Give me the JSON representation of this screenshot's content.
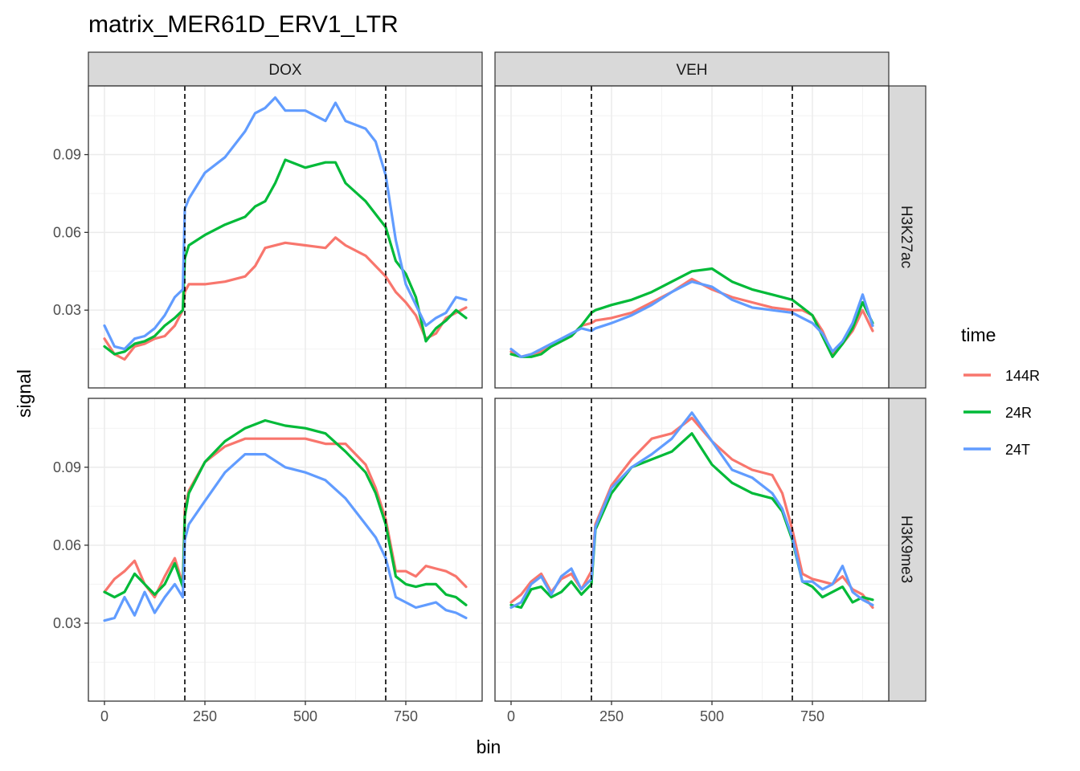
{
  "chart_data": {
    "type": "line",
    "title": "matrix_MER61D_ERV1_LTR",
    "xlabel": "bin",
    "ylabel": "signal",
    "xlim": [
      -40,
      940
    ],
    "ylim": [
      0.0,
      0.1165
    ],
    "x_ticks": [
      0,
      250,
      500,
      750
    ],
    "x_tick_labels": [
      "0",
      "250",
      "500",
      "750"
    ],
    "y_ticks": [
      0.03,
      0.06,
      0.09
    ],
    "y_tick_labels": [
      "0.03",
      "0.06",
      "0.09"
    ],
    "vlines": [
      200,
      700
    ],
    "grid": true,
    "legend_position": "right",
    "legend": {
      "title": "time",
      "entries": [
        {
          "name": "144R",
          "color": "#F8766D"
        },
        {
          "name": "24R",
          "color": "#00BA38"
        },
        {
          "name": "24T",
          "color": "#619CFF"
        }
      ]
    },
    "facet_cols": [
      "DOX",
      "VEH"
    ],
    "facet_rows": [
      "H3K27ac",
      "H3K9me3"
    ],
    "panels": [
      {
        "col": "DOX",
        "row": "H3K27ac",
        "series": [
          {
            "name": "144R",
            "color": "#F8766D",
            "x": [
              0,
              25,
              50,
              75,
              100,
              125,
              150,
              175,
              195,
              200,
              210,
              250,
              300,
              350,
              375,
              400,
              450,
              500,
              550,
              575,
              600,
              650,
              700,
              725,
              750,
              775,
              800,
              825,
              850,
              875,
              900
            ],
            "y": [
              0.019,
              0.013,
              0.011,
              0.016,
              0.017,
              0.019,
              0.02,
              0.024,
              0.03,
              0.037,
              0.04,
              0.04,
              0.041,
              0.043,
              0.047,
              0.054,
              0.056,
              0.055,
              0.054,
              0.058,
              0.055,
              0.051,
              0.043,
              0.037,
              0.033,
              0.028,
              0.019,
              0.021,
              0.027,
              0.029,
              0.031
            ]
          },
          {
            "name": "24R",
            "color": "#00BA38",
            "x": [
              0,
              25,
              50,
              75,
              100,
              125,
              150,
              175,
              195,
              200,
              210,
              250,
              300,
              350,
              375,
              400,
              425,
              450,
              500,
              550,
              575,
              600,
              650,
              700,
              725,
              750,
              775,
              800,
              825,
              850,
              875,
              900
            ],
            "y": [
              0.016,
              0.013,
              0.014,
              0.017,
              0.018,
              0.02,
              0.024,
              0.027,
              0.03,
              0.05,
              0.055,
              0.059,
              0.063,
              0.066,
              0.07,
              0.072,
              0.079,
              0.088,
              0.085,
              0.087,
              0.087,
              0.079,
              0.072,
              0.062,
              0.049,
              0.044,
              0.035,
              0.018,
              0.023,
              0.026,
              0.03,
              0.027
            ]
          },
          {
            "name": "24T",
            "color": "#619CFF",
            "x": [
              0,
              25,
              50,
              75,
              100,
              125,
              150,
              175,
              195,
              200,
              210,
              250,
              300,
              350,
              375,
              400,
              425,
              450,
              500,
              550,
              575,
              600,
              650,
              675,
              700,
              725,
              750,
              775,
              800,
              825,
              850,
              875,
              900
            ],
            "y": [
              0.024,
              0.016,
              0.015,
              0.019,
              0.02,
              0.023,
              0.028,
              0.035,
              0.038,
              0.069,
              0.073,
              0.083,
              0.089,
              0.099,
              0.106,
              0.108,
              0.112,
              0.107,
              0.107,
              0.103,
              0.11,
              0.103,
              0.1,
              0.095,
              0.082,
              0.057,
              0.04,
              0.032,
              0.024,
              0.027,
              0.029,
              0.035,
              0.034
            ]
          }
        ]
      },
      {
        "col": "VEH",
        "row": "H3K27ac",
        "series": [
          {
            "name": "144R",
            "color": "#F8766D",
            "x": [
              0,
              25,
              50,
              75,
              100,
              125,
              150,
              175,
              200,
              210,
              250,
              300,
              350,
              400,
              450,
              500,
              550,
              600,
              650,
              700,
              725,
              750,
              775,
              800,
              825,
              850,
              875,
              900
            ],
            "y": [
              0.014,
              0.012,
              0.013,
              0.014,
              0.016,
              0.018,
              0.02,
              0.024,
              0.025,
              0.026,
              0.027,
              0.029,
              0.033,
              0.037,
              0.042,
              0.038,
              0.035,
              0.033,
              0.031,
              0.03,
              0.03,
              0.028,
              0.022,
              0.013,
              0.017,
              0.022,
              0.03,
              0.022
            ]
          },
          {
            "name": "24R",
            "color": "#00BA38",
            "x": [
              0,
              25,
              50,
              75,
              100,
              125,
              150,
              175,
              200,
              210,
              250,
              300,
              350,
              400,
              450,
              500,
              550,
              600,
              650,
              700,
              725,
              750,
              775,
              800,
              825,
              850,
              875,
              900
            ],
            "y": [
              0.013,
              0.012,
              0.012,
              0.013,
              0.016,
              0.018,
              0.02,
              0.024,
              0.029,
              0.03,
              0.032,
              0.034,
              0.037,
              0.041,
              0.045,
              0.046,
              0.041,
              0.038,
              0.036,
              0.034,
              0.031,
              0.028,
              0.02,
              0.012,
              0.017,
              0.023,
              0.033,
              0.025
            ]
          },
          {
            "name": "24T",
            "color": "#619CFF",
            "x": [
              0,
              25,
              50,
              75,
              100,
              125,
              150,
              175,
              200,
              210,
              250,
              300,
              350,
              400,
              450,
              500,
              550,
              600,
              650,
              700,
              725,
              750,
              775,
              800,
              825,
              850,
              875,
              900
            ],
            "y": [
              0.015,
              0.012,
              0.013,
              0.015,
              0.017,
              0.019,
              0.021,
              0.023,
              0.022,
              0.023,
              0.025,
              0.028,
              0.032,
              0.037,
              0.041,
              0.039,
              0.034,
              0.031,
              0.03,
              0.029,
              0.027,
              0.025,
              0.021,
              0.014,
              0.018,
              0.025,
              0.036,
              0.024
            ]
          }
        ]
      },
      {
        "col": "DOX",
        "row": "H3K9me3",
        "series": [
          {
            "name": "144R",
            "color": "#F8766D",
            "x": [
              0,
              25,
              50,
              75,
              100,
              125,
              150,
              175,
              195,
              200,
              210,
              250,
              300,
              350,
              400,
              450,
              500,
              550,
              600,
              650,
              675,
              700,
              725,
              750,
              775,
              800,
              825,
              850,
              875,
              900
            ],
            "y": [
              0.042,
              0.047,
              0.05,
              0.054,
              0.045,
              0.04,
              0.048,
              0.055,
              0.045,
              0.074,
              0.081,
              0.092,
              0.098,
              0.101,
              0.101,
              0.101,
              0.101,
              0.099,
              0.099,
              0.091,
              0.082,
              0.07,
              0.05,
              0.05,
              0.048,
              0.052,
              0.051,
              0.05,
              0.048,
              0.044
            ]
          },
          {
            "name": "24R",
            "color": "#00BA38",
            "x": [
              0,
              25,
              50,
              75,
              100,
              125,
              150,
              175,
              195,
              200,
              210,
              250,
              300,
              350,
              400,
              450,
              500,
              550,
              600,
              650,
              675,
              700,
              725,
              750,
              775,
              800,
              825,
              850,
              875,
              900
            ],
            "y": [
              0.042,
              0.04,
              0.042,
              0.049,
              0.045,
              0.041,
              0.045,
              0.053,
              0.044,
              0.071,
              0.08,
              0.092,
              0.1,
              0.105,
              0.108,
              0.106,
              0.105,
              0.103,
              0.096,
              0.088,
              0.08,
              0.068,
              0.048,
              0.045,
              0.044,
              0.045,
              0.045,
              0.041,
              0.04,
              0.037
            ]
          },
          {
            "name": "24T",
            "color": "#619CFF",
            "x": [
              0,
              25,
              50,
              75,
              100,
              125,
              150,
              175,
              195,
              200,
              210,
              250,
              300,
              350,
              400,
              450,
              500,
              550,
              600,
              650,
              675,
              700,
              725,
              750,
              775,
              800,
              825,
              850,
              875,
              900
            ],
            "y": [
              0.031,
              0.032,
              0.04,
              0.033,
              0.042,
              0.034,
              0.04,
              0.045,
              0.04,
              0.062,
              0.068,
              0.077,
              0.088,
              0.095,
              0.095,
              0.09,
              0.088,
              0.085,
              0.078,
              0.068,
              0.063,
              0.055,
              0.04,
              0.038,
              0.036,
              0.037,
              0.038,
              0.035,
              0.034,
              0.032
            ]
          }
        ]
      },
      {
        "col": "VEH",
        "row": "H3K9me3",
        "series": [
          {
            "name": "144R",
            "color": "#F8766D",
            "x": [
              0,
              25,
              50,
              75,
              100,
              125,
              150,
              175,
              200,
              210,
              250,
              300,
              350,
              400,
              450,
              500,
              550,
              600,
              650,
              675,
              700,
              725,
              750,
              775,
              800,
              825,
              850,
              875,
              900
            ],
            "y": [
              0.038,
              0.041,
              0.046,
              0.049,
              0.042,
              0.047,
              0.049,
              0.043,
              0.05,
              0.068,
              0.083,
              0.093,
              0.101,
              0.103,
              0.109,
              0.1,
              0.093,
              0.089,
              0.087,
              0.08,
              0.066,
              0.049,
              0.047,
              0.046,
              0.045,
              0.048,
              0.043,
              0.041,
              0.036
            ]
          },
          {
            "name": "24R",
            "color": "#00BA38",
            "x": [
              0,
              25,
              50,
              75,
              100,
              125,
              150,
              175,
              200,
              210,
              250,
              300,
              350,
              400,
              450,
              500,
              550,
              600,
              650,
              675,
              700,
              725,
              750,
              775,
              800,
              825,
              850,
              875,
              900
            ],
            "y": [
              0.037,
              0.036,
              0.043,
              0.044,
              0.04,
              0.042,
              0.046,
              0.041,
              0.045,
              0.066,
              0.08,
              0.09,
              0.093,
              0.096,
              0.103,
              0.091,
              0.084,
              0.08,
              0.078,
              0.073,
              0.062,
              0.046,
              0.044,
              0.04,
              0.042,
              0.044,
              0.038,
              0.04,
              0.039
            ]
          },
          {
            "name": "24T",
            "color": "#619CFF",
            "x": [
              0,
              25,
              50,
              75,
              100,
              125,
              150,
              175,
              200,
              210,
              250,
              300,
              350,
              400,
              450,
              500,
              550,
              600,
              650,
              675,
              700,
              725,
              750,
              775,
              800,
              825,
              850,
              875,
              900
            ],
            "y": [
              0.036,
              0.038,
              0.045,
              0.048,
              0.041,
              0.048,
              0.051,
              0.043,
              0.047,
              0.067,
              0.082,
              0.09,
              0.095,
              0.101,
              0.111,
              0.1,
              0.089,
              0.086,
              0.08,
              0.074,
              0.063,
              0.046,
              0.046,
              0.043,
              0.045,
              0.052,
              0.042,
              0.039,
              0.037
            ]
          }
        ]
      }
    ]
  }
}
